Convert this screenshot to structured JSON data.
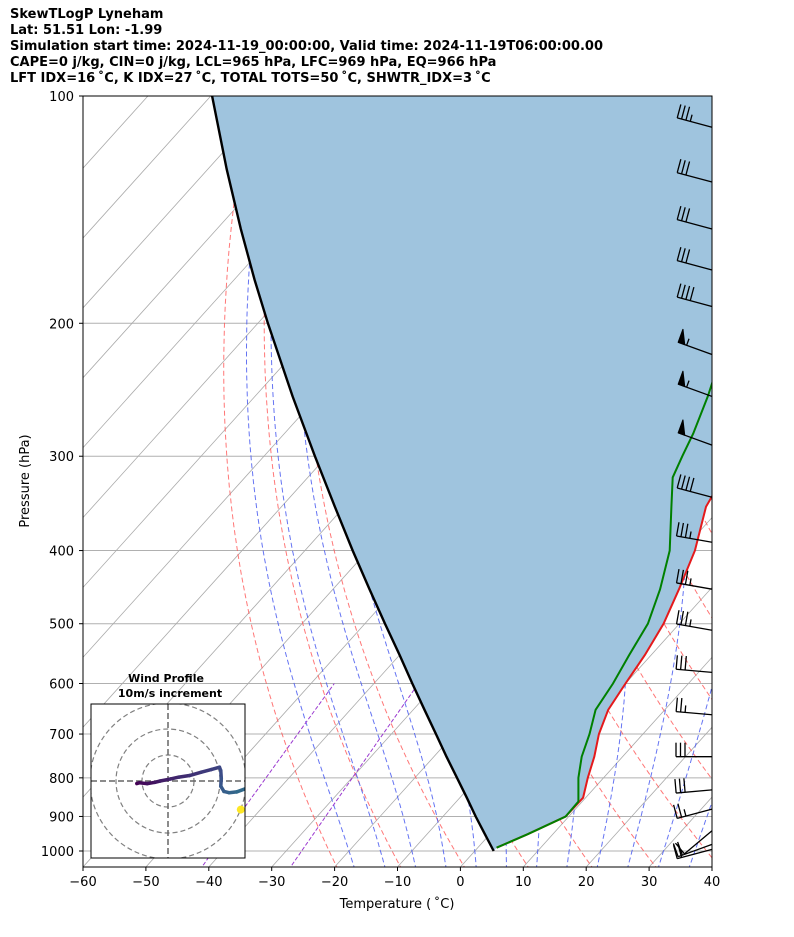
{
  "header": {
    "title": "SkewTLogP Lyneham",
    "location": "Lat: 51.51   Lon: -1.99",
    "times": "Simulation start time: 2024-11-19_00:00:00, Valid time: 2024-11-19T06:00:00.00",
    "indices_1": "CAPE=0 j/kg, CIN=0 j/kg, LCL=965 hPa, LFC=969 hPa, EQ=966 hPa",
    "indices_2": "LFT IDX=16 ˚C, K IDX=27 ˚C, TOTAL TOTS=50 ˚C, SHWTR_IDX=3 ˚C"
  },
  "chart_data": {
    "type": "line",
    "xlabel": "Temperature ( ˚C)",
    "ylabel": "Pressure (hPa)",
    "xlim": [
      -60,
      40
    ],
    "ylim": [
      1050,
      100
    ],
    "y_scale": "log",
    "skew": true,
    "grid": true,
    "x_ticks": [
      -60,
      -50,
      -40,
      -30,
      -20,
      -10,
      0,
      10,
      20,
      30,
      40
    ],
    "y_ticks": [
      100,
      200,
      300,
      400,
      500,
      600,
      700,
      800,
      900,
      1000
    ],
    "colors": {
      "temperature": "#e41a1c",
      "dewpoint": "#008000",
      "parcel": "#000000",
      "shading": "#9fc4de",
      "dry_adiabats": "#ff5555",
      "moist_adiabats": "#4a5cf0",
      "mixing_ratio": "#9b3ad0",
      "isotherms": "#aaaaaa"
    },
    "series": [
      {
        "id": "temperature",
        "pressure": [
          990,
          950,
          900,
          850,
          800,
          750,
          700,
          650,
          600,
          550,
          500,
          450,
          400,
          350,
          320,
          300,
          280,
          250,
          240,
          230,
          220,
          200,
          180,
          160,
          140,
          120,
          100
        ],
        "values": [
          3,
          6,
          9.5,
          9.6,
          7.5,
          5.5,
          3,
          1,
          0,
          -1,
          -2.5,
          -5,
          -8,
          -12.5,
          -14,
          -15.5,
          -17,
          -20.5,
          -22.5,
          -24.5,
          -25.5,
          -27,
          -29.5,
          -32,
          -34,
          -36.5,
          -39
        ]
      },
      {
        "id": "dewpoint",
        "pressure": [
          990,
          950,
          900,
          860,
          800,
          750,
          700,
          650,
          600,
          550,
          500,
          450,
          400,
          350,
          320,
          300,
          280,
          250,
          230,
          210,
          200,
          180,
          170,
          160,
          140,
          120,
          100
        ],
        "values": [
          3,
          6,
          9.5,
          9.4,
          6,
          3.5,
          1.5,
          -1,
          -2,
          -3.5,
          -5,
          -8,
          -12,
          -18,
          -22,
          -23.5,
          -25,
          -28,
          -30.5,
          -31,
          -31.5,
          -37,
          -41,
          -42,
          -43,
          -44,
          -45
        ]
      },
      {
        "id": "parcel",
        "pressure": [
          1000,
          950,
          900,
          850,
          800,
          750,
          700,
          650,
          600,
          550,
          500,
          450,
          400,
          350,
          300,
          250,
          200,
          175,
          150,
          125,
          100
        ],
        "values": [
          3.0,
          -0.8,
          -4.8,
          -8.9,
          -13.3,
          -18.0,
          -22.9,
          -28.2,
          -33.9,
          -40.0,
          -46.8,
          -54.2,
          -62.4,
          -71.5,
          -81.9,
          -94.0,
          -108.4,
          -116.8,
          -126.2,
          -137.0,
          -149.8
        ]
      }
    ],
    "wind_barbs": {
      "pressure": [
        110,
        130,
        150,
        170,
        190,
        220,
        250,
        290,
        340,
        390,
        450,
        510,
        580,
        660,
        750,
        830,
        880,
        940,
        980,
        995
      ],
      "direction_deg": [
        285,
        285,
        285,
        285,
        285,
        290,
        290,
        290,
        285,
        280,
        280,
        280,
        275,
        275,
        270,
        265,
        255,
        230,
        250,
        255
      ],
      "speed_kt": [
        35,
        30,
        30,
        30,
        40,
        55,
        55,
        50,
        40,
        35,
        35,
        35,
        30,
        25,
        30,
        30,
        25,
        10,
        20,
        20
      ]
    },
    "inset": {
      "title": "Wind Profile",
      "subtitle": "10m/s increment",
      "hodograph_u": [
        -12,
        -11,
        -8,
        -5,
        -3,
        1,
        4.2,
        8.3,
        12.8,
        16.6,
        19.8,
        20.3,
        20.5,
        20.3,
        21.5,
        23.5,
        26.4,
        29.7
      ],
      "hodograph_v": [
        -1,
        -0.7,
        -1,
        -0.5,
        0,
        0.8,
        1.5,
        2.1,
        3.4,
        4.4,
        5.3,
        4,
        1,
        -2,
        -4,
        -4.5,
        -4.2,
        -3
      ],
      "hodograph_end_point": [
        28,
        -11
      ],
      "rings_ms": [
        10,
        20,
        30
      ]
    }
  }
}
